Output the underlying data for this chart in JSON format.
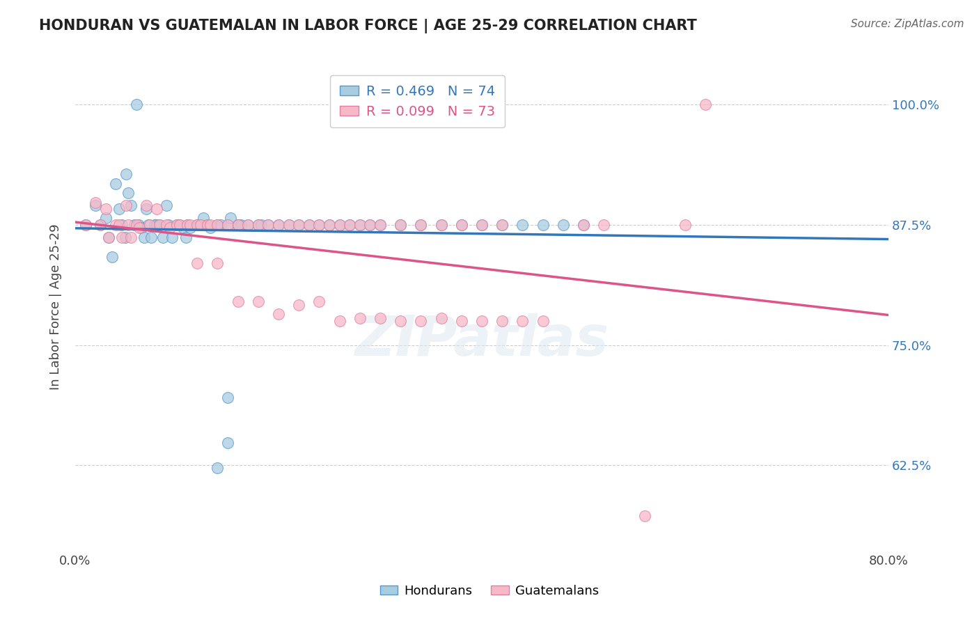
{
  "title": "HONDURAN VS GUATEMALAN IN LABOR FORCE | AGE 25-29 CORRELATION CHART",
  "source_text": "Source: ZipAtlas.com",
  "ylabel": "In Labor Force | Age 25-29",
  "watermark": "ZIPatlas",
  "xlim": [
    0.0,
    0.8
  ],
  "ylim": [
    0.54,
    1.04
  ],
  "xtick_labels": [
    "0.0%",
    "80.0%"
  ],
  "ytick_positions": [
    0.625,
    0.75,
    0.875,
    1.0
  ],
  "ytick_labels": [
    "62.5%",
    "75.0%",
    "87.5%",
    "100.0%"
  ],
  "blue_R": 0.469,
  "blue_N": 74,
  "pink_R": 0.099,
  "pink_N": 73,
  "blue_color": "#a8cce0",
  "pink_color": "#f7b8c8",
  "blue_edge_color": "#5599cc",
  "pink_edge_color": "#e080a0",
  "blue_line_color": "#3377bb",
  "pink_line_color": "#dd5588",
  "blue_text_color": "#3377bb",
  "pink_text_color": "#dd5588",
  "legend_label_blue": "Hondurans",
  "legend_label_pink": "Guatemalans",
  "blue_x": [
    0.01,
    0.02,
    0.025,
    0.03,
    0.033,
    0.036,
    0.04,
    0.043,
    0.046,
    0.049,
    0.05,
    0.052,
    0.055,
    0.058,
    0.06,
    0.062,
    0.065,
    0.068,
    0.07,
    0.072,
    0.075,
    0.078,
    0.08,
    0.083,
    0.086,
    0.09,
    0.092,
    0.095,
    0.1,
    0.103,
    0.106,
    0.109,
    0.11,
    0.113,
    0.12,
    0.123,
    0.126,
    0.13,
    0.133,
    0.14,
    0.143,
    0.15,
    0.153,
    0.16,
    0.163,
    0.17,
    0.18,
    0.183,
    0.19,
    0.2,
    0.21,
    0.22,
    0.23,
    0.24,
    0.25,
    0.26,
    0.27,
    0.28,
    0.29,
    0.3,
    0.32,
    0.34,
    0.36,
    0.38,
    0.4,
    0.42,
    0.44,
    0.46,
    0.48,
    0.5,
    0.14,
    0.15,
    0.15,
    0.16
  ],
  "blue_y": [
    0.875,
    0.895,
    0.875,
    0.882,
    0.862,
    0.842,
    0.918,
    0.892,
    0.875,
    0.862,
    0.928,
    0.908,
    0.895,
    0.875,
    1.0,
    0.875,
    0.872,
    0.862,
    0.892,
    0.875,
    0.862,
    0.875,
    0.875,
    0.875,
    0.862,
    0.895,
    0.875,
    0.862,
    0.875,
    0.875,
    0.872,
    0.862,
    0.875,
    0.872,
    0.875,
    0.875,
    0.882,
    0.875,
    0.872,
    0.875,
    0.875,
    0.875,
    0.882,
    0.875,
    0.875,
    0.875,
    0.875,
    0.875,
    0.875,
    0.875,
    0.875,
    0.875,
    0.875,
    0.875,
    0.875,
    0.875,
    0.875,
    0.875,
    0.875,
    0.875,
    0.875,
    0.875,
    0.875,
    0.875,
    0.875,
    0.875,
    0.875,
    0.875,
    0.875,
    0.875,
    0.622,
    0.648,
    0.695,
    0.875
  ],
  "pink_x": [
    0.01,
    0.02,
    0.025,
    0.03,
    0.033,
    0.04,
    0.043,
    0.046,
    0.05,
    0.052,
    0.055,
    0.06,
    0.063,
    0.07,
    0.073,
    0.08,
    0.083,
    0.09,
    0.093,
    0.1,
    0.103,
    0.11,
    0.113,
    0.12,
    0.123,
    0.13,
    0.133,
    0.14,
    0.15,
    0.16,
    0.17,
    0.18,
    0.19,
    0.2,
    0.21,
    0.22,
    0.23,
    0.24,
    0.25,
    0.26,
    0.27,
    0.28,
    0.29,
    0.3,
    0.32,
    0.34,
    0.36,
    0.38,
    0.4,
    0.42,
    0.5,
    0.52,
    0.6,
    0.62,
    0.56,
    0.12,
    0.14,
    0.16,
    0.18,
    0.2,
    0.22,
    0.24,
    0.26,
    0.28,
    0.3,
    0.32,
    0.34,
    0.36,
    0.38,
    0.4,
    0.42,
    0.44,
    0.46
  ],
  "pink_y": [
    0.875,
    0.898,
    0.875,
    0.892,
    0.862,
    0.875,
    0.875,
    0.862,
    0.895,
    0.875,
    0.862,
    0.875,
    0.872,
    0.895,
    0.875,
    0.892,
    0.875,
    0.875,
    0.872,
    0.875,
    0.875,
    0.875,
    0.875,
    0.875,
    0.875,
    0.875,
    0.875,
    0.875,
    0.875,
    0.875,
    0.875,
    0.875,
    0.875,
    0.875,
    0.875,
    0.875,
    0.875,
    0.875,
    0.875,
    0.875,
    0.875,
    0.875,
    0.875,
    0.875,
    0.875,
    0.875,
    0.875,
    0.875,
    0.875,
    0.875,
    0.875,
    0.875,
    0.875,
    1.0,
    0.572,
    0.835,
    0.835,
    0.795,
    0.795,
    0.782,
    0.792,
    0.795,
    0.775,
    0.778,
    0.778,
    0.775,
    0.775,
    0.778,
    0.775,
    0.775,
    0.775,
    0.775,
    0.775
  ]
}
